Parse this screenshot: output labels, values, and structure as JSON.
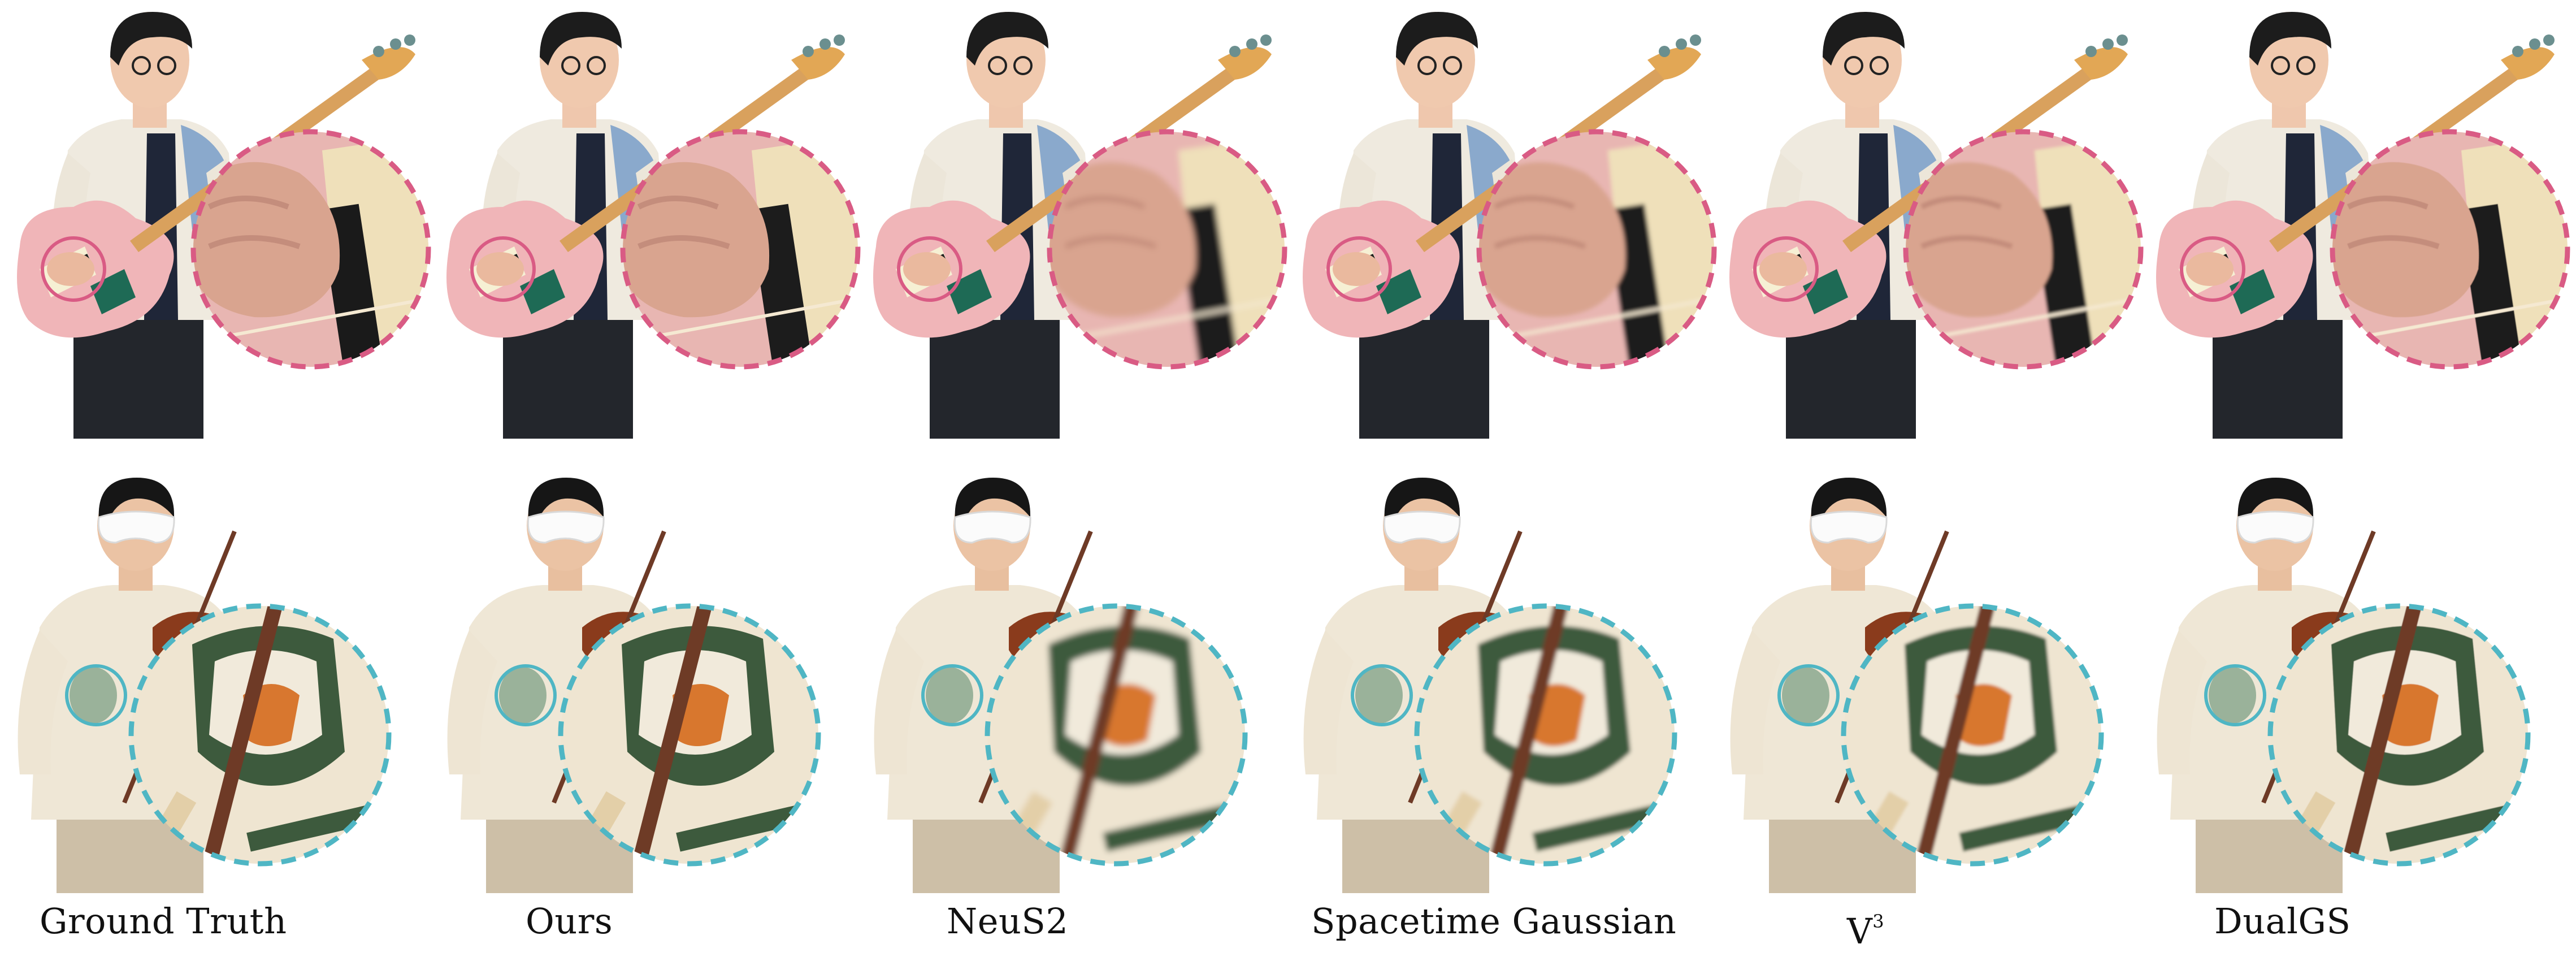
{
  "captions": [
    "Ground Truth",
    "Ours",
    "NeuS2",
    "Spacetime Gaussian",
    "V",
    "DualGS"
  ],
  "caption_superscript": "3",
  "scenes": [
    {
      "subject": "person-playing-bass-guitar",
      "zoom_ring_color": "#d95b84"
    },
    {
      "subject": "person-playing-violin",
      "zoom_ring_color": "#4fb6c4"
    }
  ],
  "blur_levels": [
    0,
    0.1,
    1.8,
    1.2,
    0.9,
    0.2
  ]
}
